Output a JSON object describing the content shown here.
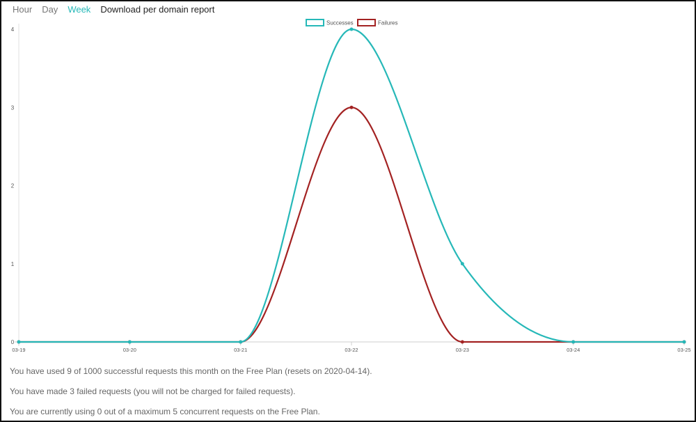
{
  "nav": {
    "tabs": [
      {
        "label": "Hour",
        "active": false
      },
      {
        "label": "Day",
        "active": false
      },
      {
        "label": "Week",
        "active": true
      }
    ],
    "download_label": "Download per domain report"
  },
  "colors": {
    "successes": "#26b8b8",
    "failures": "#a32222",
    "active_tab": "#26b8b8"
  },
  "chart_data": {
    "type": "line",
    "x": [
      "03-19",
      "03-20",
      "03-21",
      "03-22",
      "03-23",
      "03-24",
      "03-25"
    ],
    "series": [
      {
        "name": "Successes",
        "values": [
          0,
          0,
          0,
          4,
          1,
          0,
          0
        ]
      },
      {
        "name": "Failures",
        "values": [
          0,
          0,
          0,
          3,
          0,
          0,
          0
        ]
      }
    ],
    "yticks": [
      "0",
      "1",
      "2",
      "3",
      "4"
    ],
    "ylim": [
      0,
      4
    ],
    "legend": "top-center",
    "grid": false
  },
  "info": {
    "line1": "You have used 9 of 1000 successful requests this month on the Free Plan (resets on 2020-04-14).",
    "line2": "You have made 3 failed requests (you will not be charged for failed requests).",
    "line3": "You are currently using 0 out of a maximum 5 concurrent requests on the Free Plan."
  }
}
